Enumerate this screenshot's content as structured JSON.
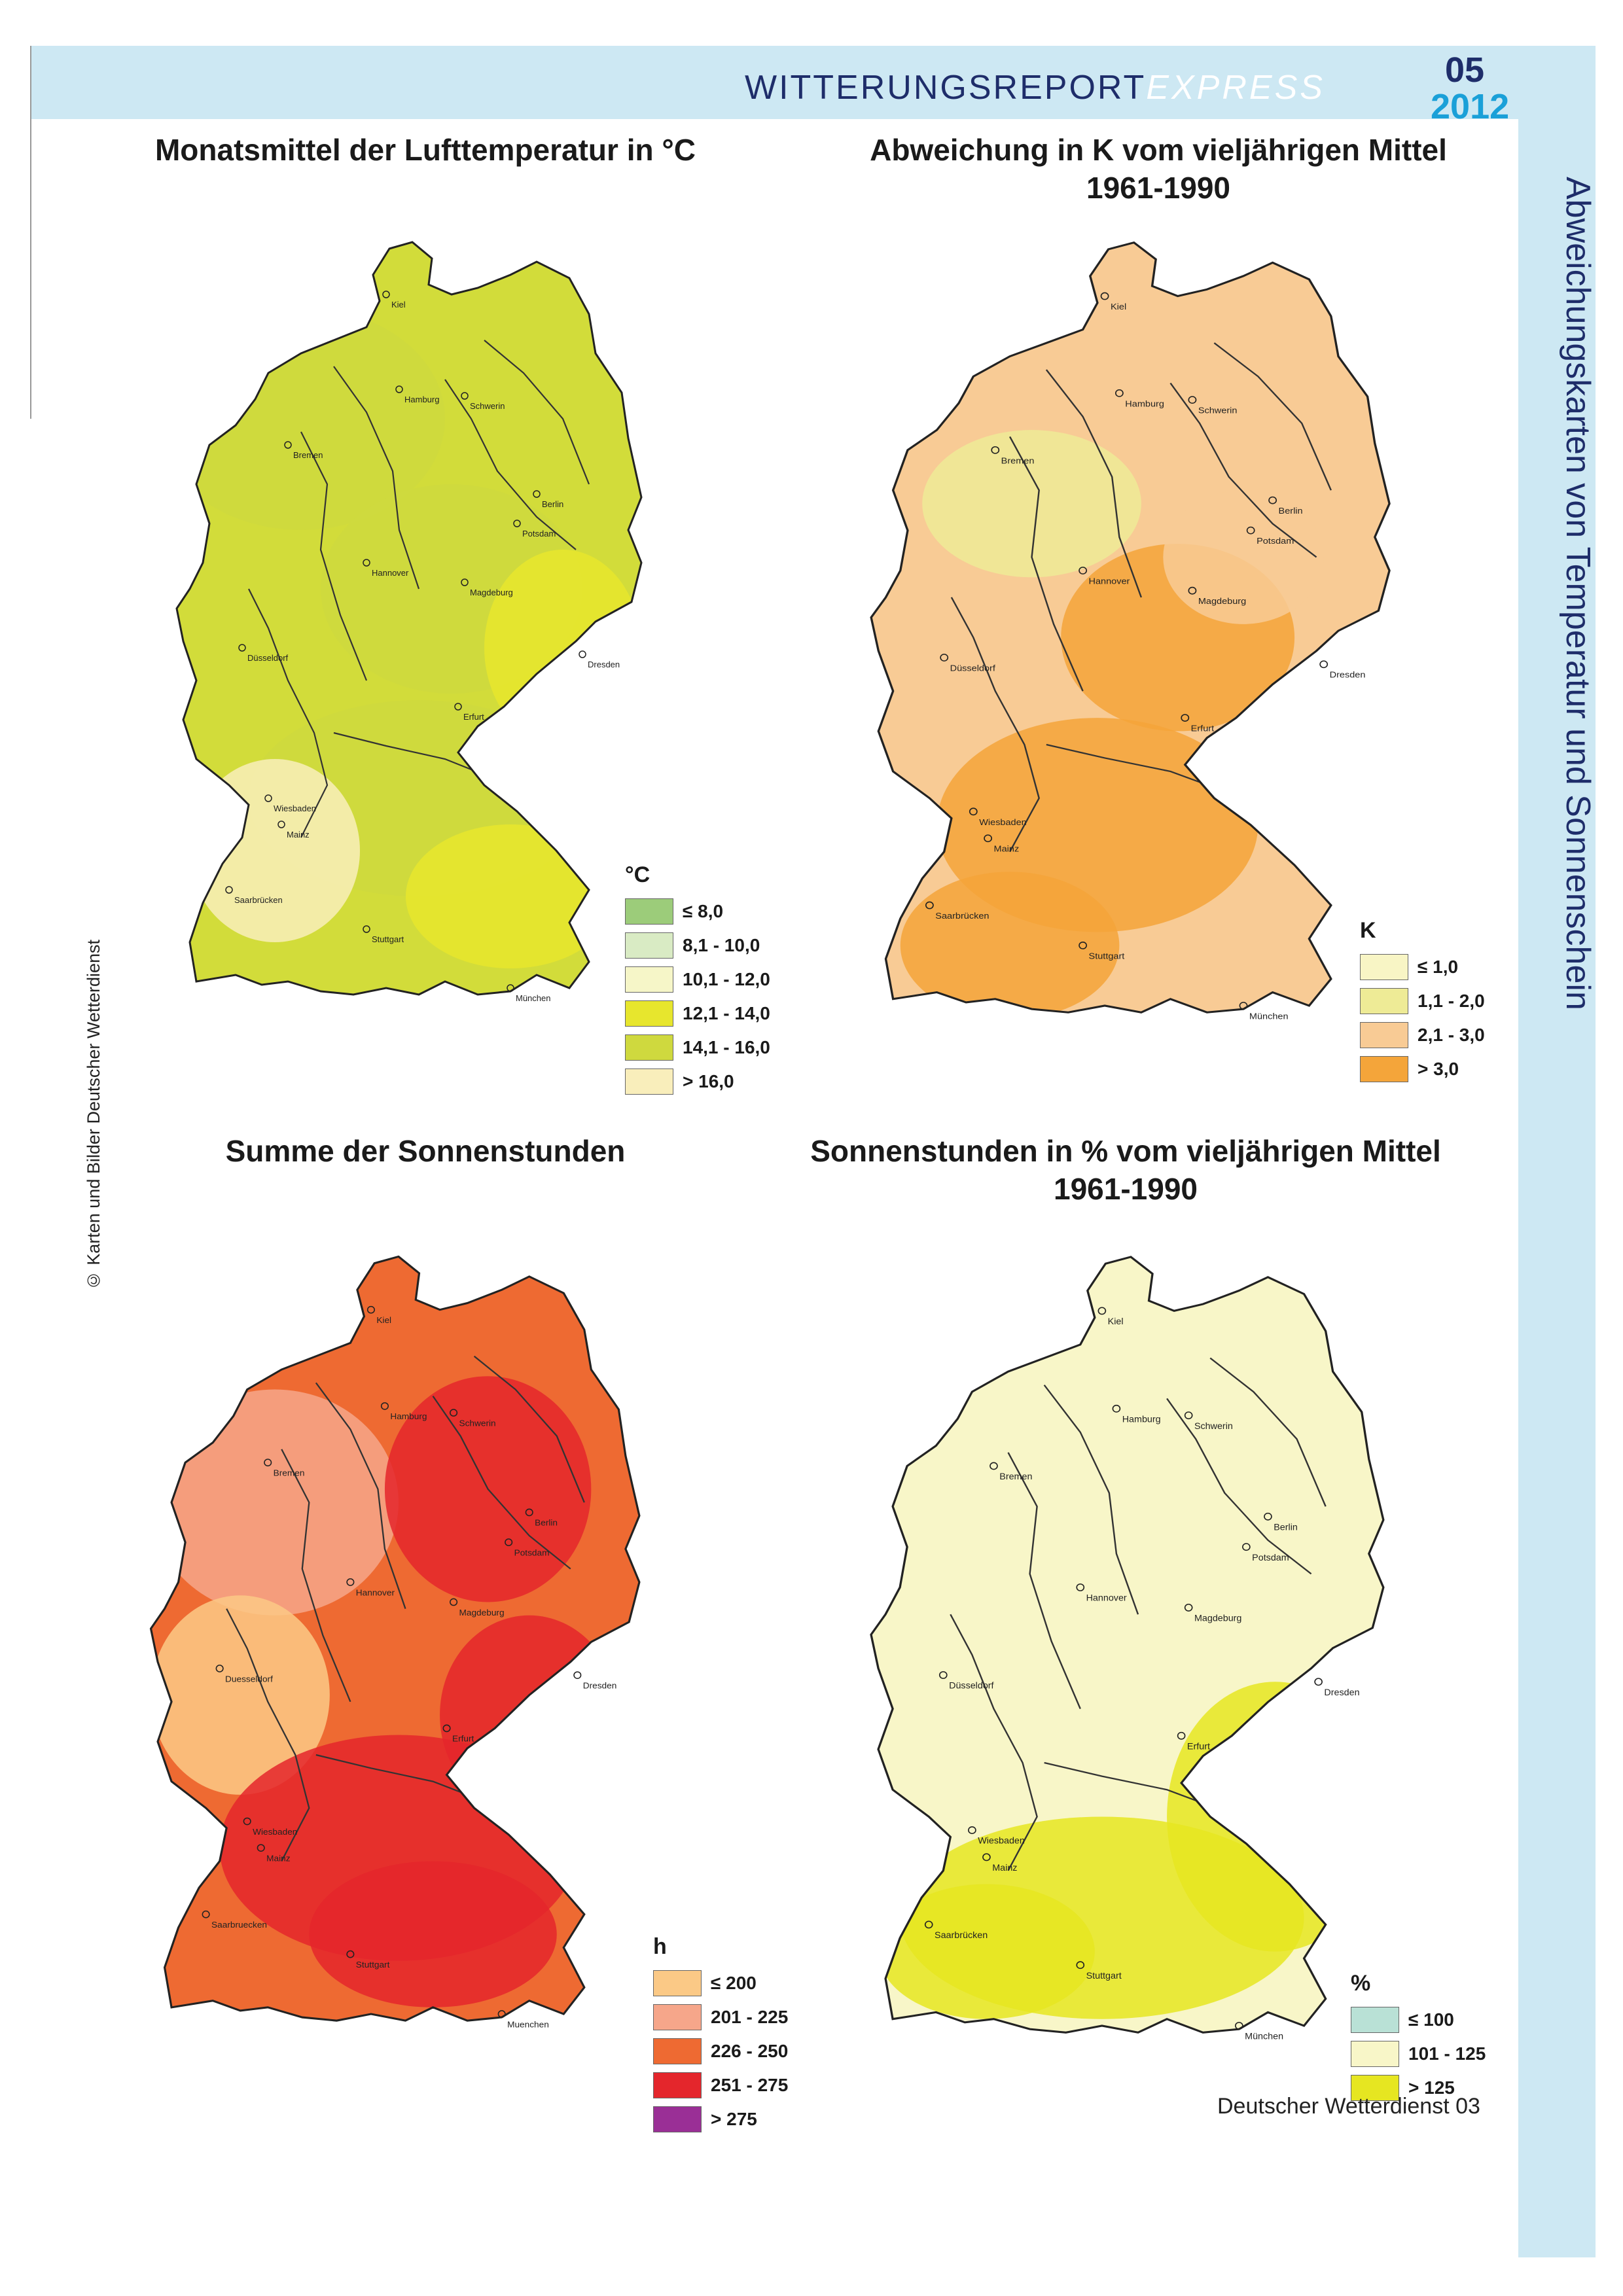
{
  "header": {
    "title_main": "WITTERUNGSREPORT",
    "title_express": "EXPRESS",
    "issue_number": "05",
    "issue_year": "2012"
  },
  "side_title": "Abweichungskarten von Temperatur und Sonnenschein",
  "copyright": "© Karten und Bilder Deutscher Wetterdienst",
  "maps": [
    {
      "title": "Monatsmittel der Lufttemperatur in °C",
      "base_color": "#d2dc3a",
      "legend_unit": "°C",
      "legend": [
        {
          "label": "≤ 8,0",
          "color": "#9ccc7a"
        },
        {
          "label": "8,1 - 10,0",
          "color": "#d9ebc4"
        },
        {
          "label": "10,1 - 12,0",
          "color": "#f6f6c8"
        },
        {
          "label": "12,1 - 14,0",
          "color": "#e7e62d"
        },
        {
          "label": "14,1 - 16,0",
          "color": "#cfd93e"
        },
        {
          "label": "> 16,0",
          "color": "#f9eebb"
        }
      ],
      "cities": [
        "Kiel",
        "Hamburg",
        "Schwerin",
        "Bremen",
        "Berlin",
        "Potsdam",
        "Hannover",
        "Magdeburg",
        "Düsseldorf",
        "Dresden",
        "Erfurt",
        "Wiesbaden",
        "Mainz",
        "Saarbrücken",
        "Stuttgart",
        "München"
      ]
    },
    {
      "title": "Abweichung in K vom vieljährigen Mittel 1961-1990",
      "title_line1": "Abweichung in K vom vieljährigen Mittel",
      "title_line2": "1961-1990",
      "base_color": "#f8cb95",
      "legend_unit": "K",
      "legend": [
        {
          "label": "≤ 1,0",
          "color": "#f8f5c5"
        },
        {
          "label": "1,1 - 2,0",
          "color": "#eeeb96"
        },
        {
          "label": "2,1 - 3,0",
          "color": "#f8cb95"
        },
        {
          "label": "> 3,0",
          "color": "#f4a53a"
        }
      ],
      "cities": [
        "Kiel",
        "Hamburg",
        "Schwerin",
        "Bremen",
        "Berlin",
        "Potsdam",
        "Hannover",
        "Magdeburg",
        "Düsseldorf",
        "Dresden",
        "Erfurt",
        "Wiesbaden",
        "Mainz",
        "Saarbrücken",
        "Stuttgart",
        "München"
      ]
    },
    {
      "title": "Summe der Sonnenstunden",
      "base_color": "#ee6a32",
      "legend_unit": "h",
      "legend": [
        {
          "label": "≤ 200",
          "color": "#fbc986"
        },
        {
          "label": "201 - 225",
          "color": "#f6a68a"
        },
        {
          "label": "226 - 250",
          "color": "#ee6a32"
        },
        {
          "label": "251 - 275",
          "color": "#e4262c"
        },
        {
          "label": "> 275",
          "color": "#9a2f96"
        }
      ],
      "cities": [
        "Kiel",
        "Hamburg",
        "Schwerin",
        "Bremen",
        "Berlin",
        "Potsdam",
        "Hannover",
        "Magdeburg",
        "Duesseldorf",
        "Dresden",
        "Erfurt",
        "Wiesbaden",
        "Mainz",
        "Saarbruecken",
        "Stuttgart",
        "Muenchen"
      ]
    },
    {
      "title": "Sonnenstunden in % vom vieljährigen Mittel 1961-1990",
      "title_line1": "Sonnenstunden in % vom vieljährigen Mittel",
      "title_line2": "1961-1990",
      "base_color": "#f8f6c8",
      "legend_unit": "%",
      "legend": [
        {
          "label": "≤ 100",
          "color": "#b9e1d6"
        },
        {
          "label": "101 - 125",
          "color": "#f8f6c8"
        },
        {
          "label": "> 125",
          "color": "#e6e621"
        }
      ],
      "cities": [
        "Kiel",
        "Hamburg",
        "Schwerin",
        "Bremen",
        "Berlin",
        "Potsdam",
        "Hannover",
        "Magdeburg",
        "Düsseldorf",
        "Dresden",
        "Erfurt",
        "Wiesbaden",
        "Mainz",
        "Saarbrücken",
        "Stuttgart",
        "München"
      ]
    }
  ],
  "footer": {
    "publisher": "Deutscher Wetterdienst",
    "page": "03"
  }
}
